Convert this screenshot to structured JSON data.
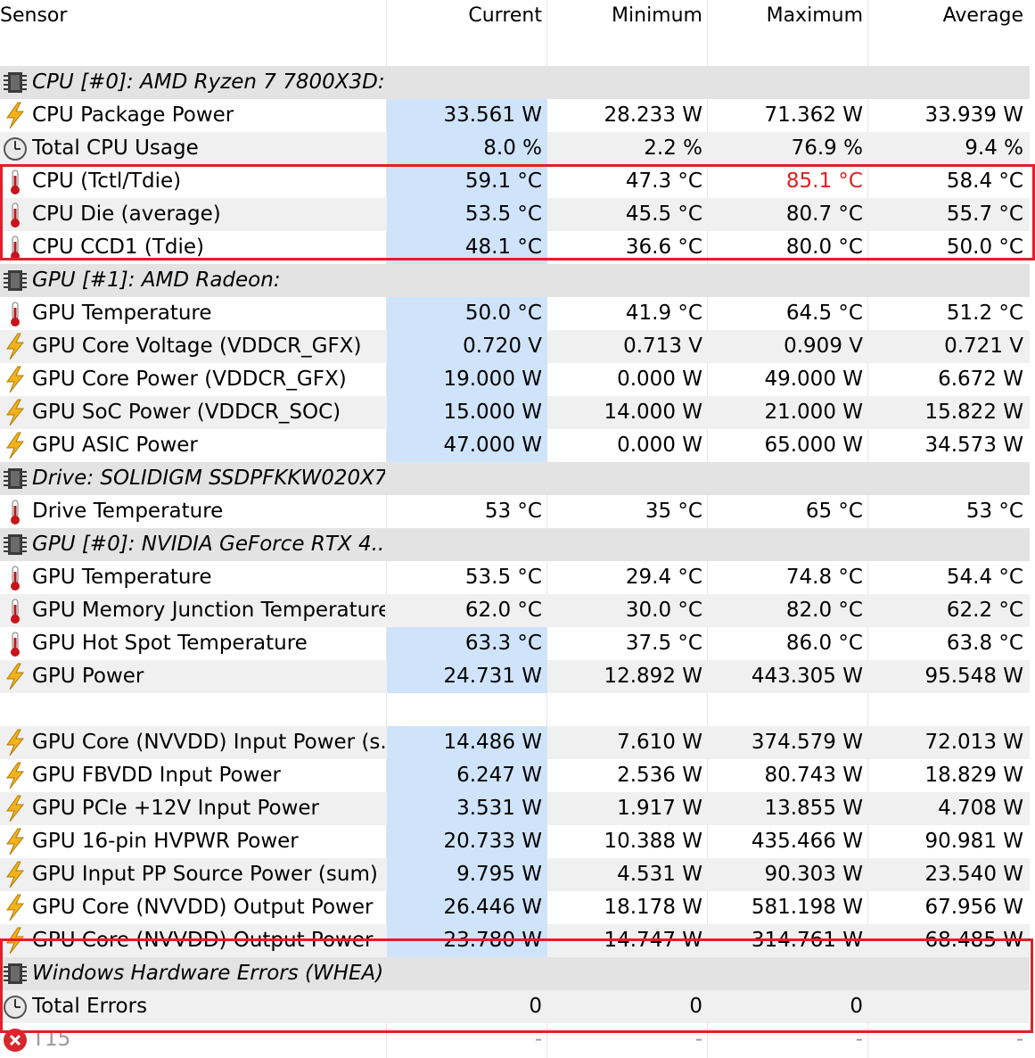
{
  "header": {
    "sensor": "Sensor",
    "current": "Current",
    "minimum": "Minimum",
    "maximum": "Maximum",
    "average": "Average"
  },
  "colors": {
    "current_highlight": "#cfe4fb",
    "alarm_red": "#e02020",
    "box_red": "#e0202a"
  },
  "rows": [
    {
      "type": "group",
      "icon": "chip-icon",
      "name": "CPU [#0]: AMD Ryzen 7 7800X3D:..."
    },
    {
      "type": "sensor",
      "icon": "power-bolt-icon",
      "name": "CPU Package Power",
      "current": "33.561 W",
      "min": "28.233 W",
      "max": "71.362 W",
      "avg": "33.939 W",
      "hl": true
    },
    {
      "type": "sensor",
      "icon": "clock-gauge-icon",
      "name": "Total CPU Usage",
      "current": "8.0 %",
      "min": "2.2 %",
      "max": "76.9 %",
      "avg": "9.4 %",
      "hl": true
    },
    {
      "type": "sensor",
      "icon": "thermometer-icon",
      "name": "CPU (Tctl/Tdie)",
      "current": "59.1 °C",
      "min": "47.3 °C",
      "max": "85.1 °C",
      "avg": "58.4 °C",
      "hl": true,
      "max_red": true
    },
    {
      "type": "sensor",
      "icon": "thermometer-icon",
      "name": "CPU Die (average)",
      "current": "53.5 °C",
      "min": "45.5 °C",
      "max": "80.7 °C",
      "avg": "55.7 °C",
      "hl": true
    },
    {
      "type": "sensor",
      "icon": "thermometer-icon",
      "name": "CPU CCD1 (Tdie)",
      "current": "48.1 °C",
      "min": "36.6 °C",
      "max": "80.0 °C",
      "avg": "50.0 °C",
      "hl": true
    },
    {
      "type": "group",
      "icon": "chip-icon",
      "name": "GPU [#1]: AMD Radeon:"
    },
    {
      "type": "sensor",
      "icon": "thermometer-icon",
      "name": "GPU Temperature",
      "current": "50.0 °C",
      "min": "41.9 °C",
      "max": "64.5 °C",
      "avg": "51.2 °C",
      "hl": true
    },
    {
      "type": "sensor",
      "icon": "power-bolt-icon",
      "name": "GPU Core Voltage (VDDCR_GFX)",
      "current": "0.720 V",
      "min": "0.713 V",
      "max": "0.909 V",
      "avg": "0.721 V",
      "hl": true
    },
    {
      "type": "sensor",
      "icon": "power-bolt-icon",
      "name": "GPU Core Power (VDDCR_GFX)",
      "current": "19.000 W",
      "min": "0.000 W",
      "max": "49.000 W",
      "avg": "6.672 W",
      "hl": true
    },
    {
      "type": "sensor",
      "icon": "power-bolt-icon",
      "name": "GPU SoC Power (VDDCR_SOC)",
      "current": "15.000 W",
      "min": "14.000 W",
      "max": "21.000 W",
      "avg": "15.822 W",
      "hl": true
    },
    {
      "type": "sensor",
      "icon": "power-bolt-icon",
      "name": "GPU ASIC Power",
      "current": "47.000 W",
      "min": "0.000 W",
      "max": "65.000 W",
      "avg": "34.573 W",
      "hl": true
    },
    {
      "type": "group",
      "icon": "chip-icon",
      "name": "Drive: SOLIDIGM SSDPFKKW020X7..."
    },
    {
      "type": "sensor",
      "icon": "thermometer-icon",
      "name": "Drive Temperature",
      "current": "53 °C",
      "min": "35 °C",
      "max": "65 °C",
      "avg": "53 °C",
      "hl": false
    },
    {
      "type": "group",
      "icon": "chip-icon",
      "name": "GPU [#0]: NVIDIA GeForce RTX 4..."
    },
    {
      "type": "sensor",
      "icon": "thermometer-icon",
      "name": "GPU Temperature",
      "current": "53.5 °C",
      "min": "29.4 °C",
      "max": "74.8 °C",
      "avg": "54.4 °C",
      "hl": false
    },
    {
      "type": "sensor",
      "icon": "thermometer-icon",
      "name": "GPU Memory Junction Temperature",
      "current": "62.0 °C",
      "min": "30.0 °C",
      "max": "82.0 °C",
      "avg": "62.2 °C",
      "hl": false
    },
    {
      "type": "sensor",
      "icon": "thermometer-icon",
      "name": "GPU Hot Spot Temperature",
      "current": "63.3 °C",
      "min": "37.5 °C",
      "max": "86.0 °C",
      "avg": "63.8 °C",
      "hl": true
    },
    {
      "type": "sensor",
      "icon": "power-bolt-icon",
      "name": "GPU Power",
      "current": "24.731 W",
      "min": "12.892 W",
      "max": "443.305 W",
      "avg": "95.548 W",
      "hl": true
    },
    {
      "type": "blank"
    },
    {
      "type": "sensor",
      "icon": "power-bolt-icon",
      "name": "GPU Core (NVVDD) Input Power (s...",
      "current": "14.486 W",
      "min": "7.610 W",
      "max": "374.579 W",
      "avg": "72.013 W",
      "hl": true
    },
    {
      "type": "sensor",
      "icon": "power-bolt-icon",
      "name": "GPU FBVDD Input Power",
      "current": "6.247 W",
      "min": "2.536 W",
      "max": "80.743 W",
      "avg": "18.829 W",
      "hl": true
    },
    {
      "type": "sensor",
      "icon": "power-bolt-icon",
      "name": "GPU PCIe +12V Input Power",
      "current": "3.531 W",
      "min": "1.917 W",
      "max": "13.855 W",
      "avg": "4.708 W",
      "hl": true
    },
    {
      "type": "sensor",
      "icon": "power-bolt-icon",
      "name": "GPU 16-pin HVPWR Power",
      "current": "20.733 W",
      "min": "10.388 W",
      "max": "435.466 W",
      "avg": "90.981 W",
      "hl": true
    },
    {
      "type": "sensor",
      "icon": "power-bolt-icon",
      "name": "GPU Input PP Source Power (sum)",
      "current": "9.795 W",
      "min": "4.531 W",
      "max": "90.303 W",
      "avg": "23.540 W",
      "hl": true
    },
    {
      "type": "sensor",
      "icon": "power-bolt-icon",
      "name": "GPU Core (NVVDD) Output Power",
      "current": "26.446 W",
      "min": "18.178 W",
      "max": "581.198 W",
      "avg": "67.956 W",
      "hl": true
    },
    {
      "type": "sensor",
      "icon": "power-bolt-icon",
      "name": "GPU Core (NVVDD) Output Power",
      "current": "23.780 W",
      "min": "14.747 W",
      "max": "314.761 W",
      "avg": "68.485 W",
      "hl": true
    },
    {
      "type": "group",
      "icon": "chip-icon",
      "name": "Windows Hardware Errors (WHEA)"
    },
    {
      "type": "sensor",
      "icon": "clock-gauge-icon",
      "name": "Total Errors",
      "current": "0",
      "min": "0",
      "max": "0",
      "avg": "",
      "hl": false
    },
    {
      "type": "sensor",
      "icon": "error-x-icon",
      "name": "T15",
      "current": "-",
      "min": "-",
      "max": "-",
      "avg": "-",
      "hl": false,
      "faded": true
    }
  ]
}
